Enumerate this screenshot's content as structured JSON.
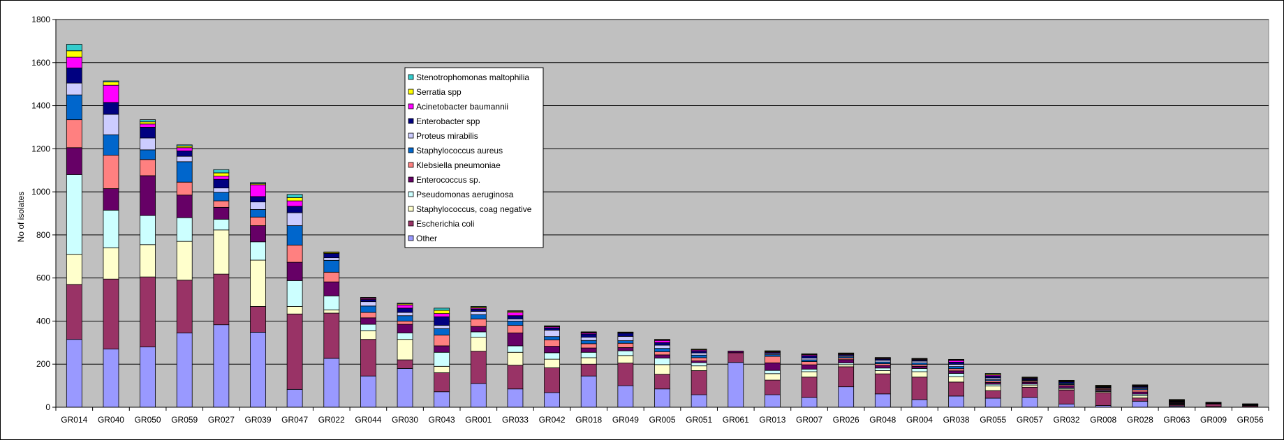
{
  "chart_data": {
    "type": "bar",
    "stacked": true,
    "title": "",
    "xlabel": "",
    "ylabel": "No of isolates",
    "ylim": [
      0,
      1800
    ],
    "yticks": [
      0,
      200,
      400,
      600,
      800,
      1000,
      1200,
      1400,
      1600,
      1800
    ],
    "grid": "horizontal",
    "legend_position": "top-center",
    "plot_background": "#C0C0C0",
    "categories": [
      "GR014",
      "GR040",
      "GR050",
      "GR059",
      "GR027",
      "GR039",
      "GR047",
      "GR022",
      "GR044",
      "GR030",
      "GR043",
      "GR001",
      "GR033",
      "GR042",
      "GR018",
      "GR049",
      "GR005",
      "GR051",
      "GR061",
      "GR013",
      "GR007",
      "GR026",
      "GR048",
      "GR004",
      "GR038",
      "GR055",
      "GR057",
      "GR032",
      "GR008",
      "GR028",
      "GR063",
      "GR009",
      "GR056"
    ],
    "series": [
      {
        "name": "Other",
        "color": "#9999FF",
        "values": [
          315,
          270,
          280,
          345,
          383,
          348,
          83,
          227,
          145,
          180,
          72,
          110,
          85,
          68,
          145,
          100,
          85,
          58,
          208,
          58,
          45,
          95,
          62,
          35,
          52,
          42,
          45,
          15,
          8,
          28,
          5,
          3,
          3
        ]
      },
      {
        "name": "Escherichia coli",
        "color": "#993366",
        "values": [
          255,
          325,
          325,
          245,
          235,
          120,
          350,
          210,
          170,
          40,
          88,
          150,
          110,
          115,
          55,
          105,
          68,
          112,
          45,
          68,
          95,
          93,
          93,
          105,
          65,
          35,
          48,
          65,
          60,
          15,
          5,
          12,
          5
        ]
      },
      {
        "name": "Staphylococcus, coag negative",
        "color": "#FFFFCC",
        "values": [
          140,
          145,
          150,
          180,
          205,
          215,
          35,
          15,
          40,
          95,
          30,
          65,
          60,
          40,
          30,
          35,
          45,
          22,
          0,
          30,
          25,
          10,
          15,
          25,
          25,
          22,
          10,
          5,
          5,
          10,
          3,
          2,
          2
        ]
      },
      {
        "name": "Pseudomonas aeruginosa",
        "color": "#CCFFFF",
        "values": [
          370,
          175,
          135,
          110,
          50,
          85,
          120,
          65,
          30,
          30,
          65,
          25,
          30,
          30,
          25,
          22,
          30,
          15,
          0,
          15,
          12,
          8,
          12,
          15,
          15,
          8,
          5,
          5,
          4,
          8,
          3,
          1,
          1
        ]
      },
      {
        "name": "Enterococcus sp.",
        "color": "#660066",
        "values": [
          125,
          100,
          185,
          105,
          55,
          75,
          85,
          65,
          30,
          40,
          30,
          25,
          60,
          30,
          20,
          15,
          15,
          8,
          8,
          35,
          20,
          15,
          12,
          10,
          12,
          8,
          8,
          10,
          5,
          10,
          3,
          1,
          1
        ]
      },
      {
        "name": "Klebsiella pneumoniae",
        "color": "#FF8080",
        "values": [
          130,
          155,
          75,
          60,
          30,
          40,
          80,
          45,
          25,
          15,
          50,
          35,
          35,
          30,
          20,
          20,
          15,
          15,
          0,
          30,
          15,
          8,
          8,
          8,
          10,
          8,
          5,
          5,
          5,
          10,
          3,
          1,
          1
        ]
      },
      {
        "name": "Staphylococcus aureus",
        "color": "#0066CC",
        "values": [
          115,
          95,
          45,
          95,
          40,
          35,
          90,
          55,
          30,
          25,
          30,
          20,
          20,
          15,
          15,
          12,
          15,
          12,
          0,
          8,
          8,
          5,
          8,
          8,
          10,
          5,
          3,
          5,
          3,
          5,
          2,
          1,
          1
        ]
      },
      {
        "name": "Proteus mirabilis",
        "color": "#CCCCFF",
        "values": [
          55,
          95,
          55,
          25,
          20,
          35,
          60,
          12,
          20,
          15,
          15,
          15,
          10,
          30,
          15,
          20,
          15,
          10,
          0,
          5,
          8,
          5,
          8,
          8,
          10,
          8,
          3,
          3,
          2,
          5,
          2,
          0,
          0
        ]
      },
      {
        "name": "Enterobacter spp",
        "color": "#000080",
        "values": [
          70,
          55,
          50,
          25,
          40,
          25,
          30,
          20,
          10,
          20,
          40,
          10,
          15,
          10,
          15,
          15,
          12,
          8,
          0,
          5,
          10,
          5,
          5,
          5,
          10,
          8,
          5,
          5,
          3,
          5,
          3,
          0,
          0
        ]
      },
      {
        "name": "Acinetobacter baumannii",
        "color": "#FF00FF",
        "values": [
          50,
          80,
          15,
          15,
          15,
          55,
          25,
          0,
          5,
          15,
          15,
          5,
          15,
          5,
          5,
          0,
          10,
          5,
          0,
          3,
          5,
          3,
          3,
          3,
          8,
          5,
          3,
          2,
          2,
          3,
          2,
          1,
          1
        ]
      },
      {
        "name": "Serratia spp",
        "color": "#FFFF00",
        "values": [
          30,
          15,
          10,
          8,
          15,
          5,
          15,
          5,
          3,
          5,
          15,
          5,
          5,
          3,
          3,
          3,
          3,
          3,
          0,
          3,
          3,
          3,
          3,
          3,
          3,
          5,
          3,
          3,
          3,
          3,
          3,
          1,
          1
        ]
      },
      {
        "name": "Stenotrophomonas maltophilia",
        "color": "#33CCCC",
        "values": [
          30,
          5,
          10,
          5,
          15,
          5,
          15,
          2,
          2,
          3,
          10,
          3,
          3,
          2,
          2,
          2,
          2,
          2,
          0,
          2,
          2,
          2,
          2,
          2,
          2,
          3,
          2,
          2,
          2,
          2,
          2,
          0,
          0
        ]
      }
    ]
  }
}
